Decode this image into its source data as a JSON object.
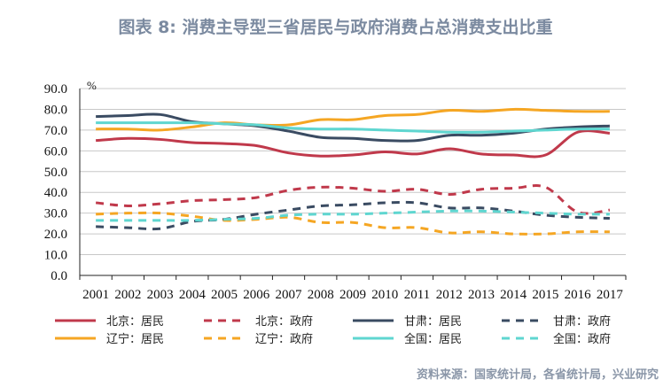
{
  "title": "图表 8:  消费主导型三省居民与政府消费占总消费支出比重",
  "source": "资料来源：国家统计局，各省统计局，兴业研究",
  "chart_data": {
    "type": "line",
    "title": "图表 8:  消费主导型三省居民与政府消费占总消费支出比重",
    "ylabel": "%",
    "ylim": [
      0,
      90
    ],
    "yticks": [
      "0.0",
      "10.0",
      "20.0",
      "30.0",
      "40.0",
      "50.0",
      "60.0",
      "70.0",
      "80.0",
      "90.0"
    ],
    "grid": true,
    "legend_placement": "bottom",
    "categories": [
      "2001",
      "2002",
      "2003",
      "2004",
      "2005",
      "2006",
      "2007",
      "2008",
      "2009",
      "2010",
      "2011",
      "2012",
      "2013",
      "2014",
      "2015",
      "2016",
      "2017"
    ],
    "series": [
      {
        "name": "北京：居民",
        "color": "#c0394b",
        "dash": false,
        "values": [
          65,
          66,
          65.5,
          64,
          63.5,
          62.5,
          59,
          57.5,
          58,
          59.5,
          58.5,
          61,
          58.5,
          58,
          58,
          69,
          68.5
        ]
      },
      {
        "name": "北京：政府",
        "color": "#c0394b",
        "dash": true,
        "values": [
          35,
          33.5,
          34.5,
          36,
          36.5,
          37.5,
          41,
          42.5,
          42,
          40.5,
          41.5,
          39,
          41.5,
          42,
          42.5,
          30.5,
          31.5
        ]
      },
      {
        "name": "甘肃：居民",
        "color": "#3a4b62",
        "dash": false,
        "values": [
          76.5,
          77,
          77.5,
          74,
          73,
          72,
          69.5,
          66.5,
          66,
          65,
          65,
          67.5,
          67.5,
          68.5,
          70.5,
          71.5,
          72
        ]
      },
      {
        "name": "甘肃：政府",
        "color": "#3a4b62",
        "dash": true,
        "values": [
          23.5,
          23,
          22.5,
          26,
          27,
          29.5,
          31.5,
          33.5,
          34,
          35,
          35,
          32.5,
          32.5,
          31,
          29,
          28,
          27.5
        ]
      },
      {
        "name": "辽宁：居民",
        "color": "#f5a623",
        "dash": false,
        "values": [
          70.5,
          70.5,
          70,
          71.5,
          73.5,
          72.5,
          72.5,
          75,
          75,
          77,
          77.5,
          79.5,
          79,
          80,
          79.5,
          79,
          79
        ]
      },
      {
        "name": "辽宁：政府",
        "color": "#f5a623",
        "dash": true,
        "values": [
          29.5,
          30,
          30,
          28.5,
          26.5,
          27,
          28,
          25.5,
          25.5,
          23,
          23,
          20.5,
          21,
          20,
          20,
          21,
          21
        ]
      },
      {
        "name": "全国：居民",
        "color": "#5fd6d0",
        "dash": false,
        "values": [
          73.5,
          73.5,
          73.5,
          73.5,
          73,
          72.5,
          71,
          70.5,
          70.5,
          70,
          69.5,
          69,
          69,
          69.5,
          70,
          70.5,
          70.5
        ]
      },
      {
        "name": "全国：政府",
        "color": "#5fd6d0",
        "dash": true,
        "values": [
          26.5,
          26.5,
          26.5,
          26.5,
          27,
          27.5,
          29,
          29.5,
          29.5,
          30,
          30.5,
          31,
          31,
          30.5,
          30,
          29.5,
          29.5
        ]
      }
    ]
  }
}
